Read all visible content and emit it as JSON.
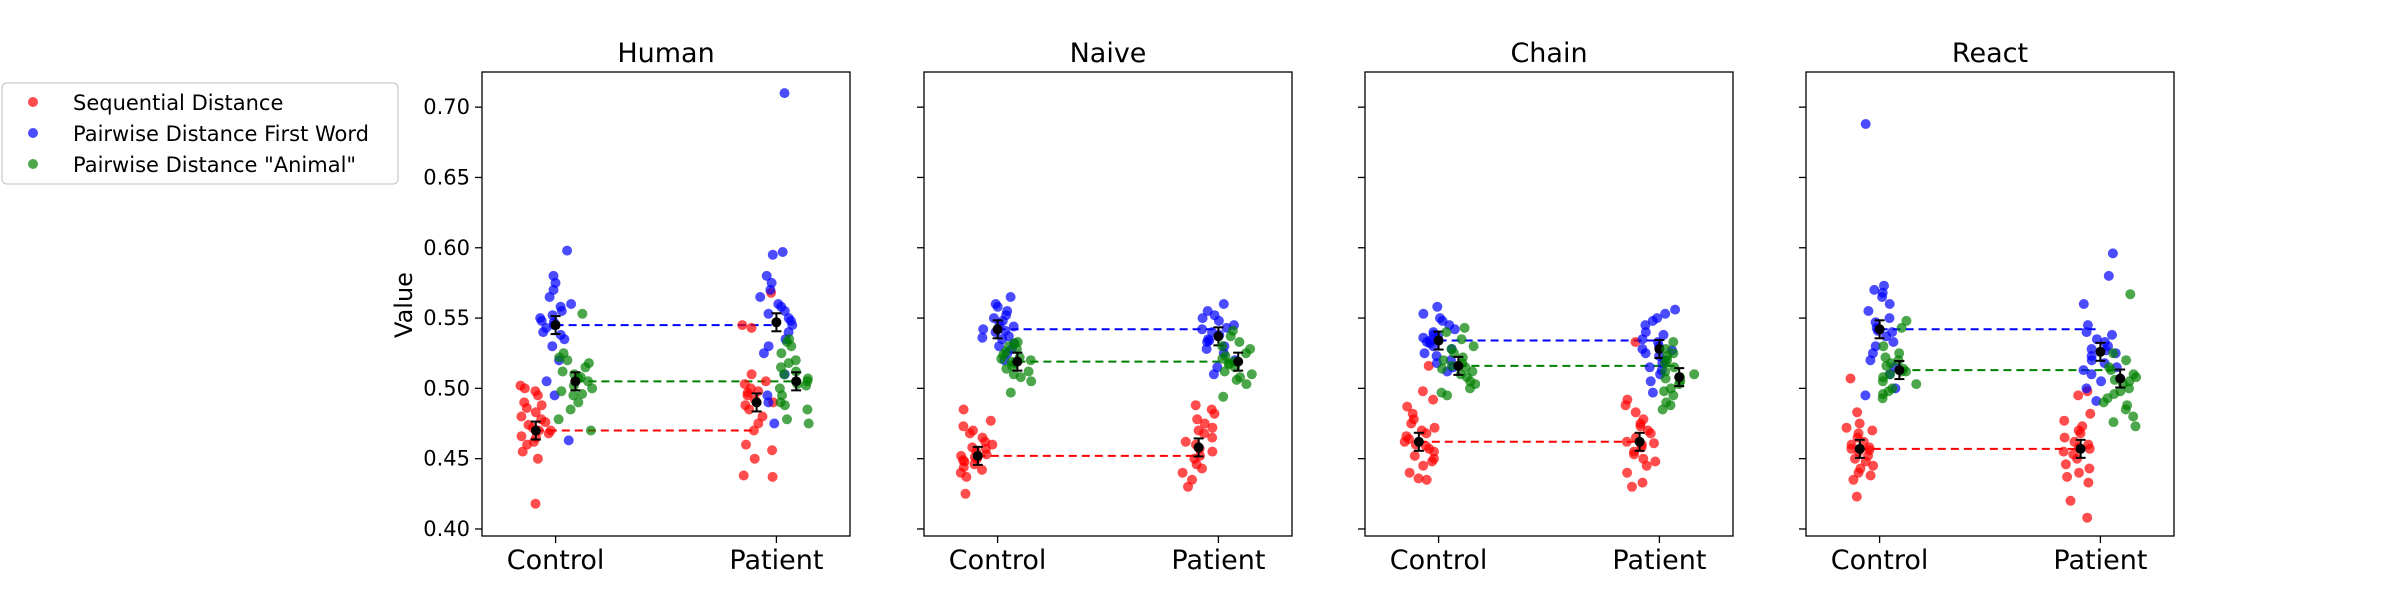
{
  "chart_data": {
    "type": "scatter",
    "ylabel": "Value",
    "categories": [
      "Control",
      "Patient"
    ],
    "ylim": [
      0.395,
      0.725
    ],
    "yticks": [
      0.4,
      0.45,
      0.5,
      0.55,
      0.6,
      0.65,
      0.7
    ],
    "ytick_labels": [
      "0.40",
      "0.45",
      "0.50",
      "0.55",
      "0.60",
      "0.65",
      "0.70"
    ],
    "grid": false,
    "legend_position": "upper-left, outside plots",
    "series": [
      {
        "name": "Sequential Distance",
        "color": "#ff0000",
        "offset": -0.28
      },
      {
        "name": "Pairwise Distance First Word",
        "color": "#0000ff",
        "offset": 0.0
      },
      {
        "name": "Pairwise Distance \"Animal\"",
        "color": "#008000",
        "offset": 0.28
      }
    ],
    "panels": [
      {
        "title": "Human",
        "means": {
          "Sequential Distance": [
            0.47,
            0.49
          ],
          "Pairwise Distance First Word": [
            0.545,
            0.547
          ],
          "Pairwise Distance \"Animal\"": [
            0.505,
            0.505
          ]
        },
        "points": {
          "Sequential Distance": [
            [
              0.418,
              0.45,
              0.455,
              0.46,
              0.462,
              0.465,
              0.466,
              0.468,
              0.47,
              0.472,
              0.474,
              0.476,
              0.478,
              0.48,
              0.483,
              0.486,
              0.488,
              0.49,
              0.495,
              0.498,
              0.5,
              0.502,
              0.47
            ],
            [
              0.437,
              0.438,
              0.45,
              0.456,
              0.46,
              0.47,
              0.475,
              0.48,
              0.485,
              0.488,
              0.49,
              0.492,
              0.495,
              0.498,
              0.5,
              0.503,
              0.505,
              0.51,
              0.543,
              0.545,
              0.568,
              0.497
            ]
          ],
          "Pairwise Distance First Word": [
            [
              0.463,
              0.495,
              0.505,
              0.52,
              0.53,
              0.535,
              0.538,
              0.54,
              0.543,
              0.545,
              0.548,
              0.55,
              0.552,
              0.555,
              0.558,
              0.56,
              0.565,
              0.57,
              0.575,
              0.58,
              0.598,
              0.547
            ],
            [
              0.475,
              0.49,
              0.495,
              0.51,
              0.525,
              0.53,
              0.535,
              0.54,
              0.545,
              0.548,
              0.55,
              0.555,
              0.558,
              0.56,
              0.565,
              0.57,
              0.575,
              0.58,
              0.595,
              0.597,
              0.71,
              0.553
            ]
          ],
          "Pairwise Distance \"Animal\"": [
            [
              0.47,
              0.478,
              0.485,
              0.49,
              0.495,
              0.498,
              0.5,
              0.502,
              0.505,
              0.507,
              0.51,
              0.512,
              0.515,
              0.518,
              0.52,
              0.522,
              0.525,
              0.553,
              0.496,
              0.508
            ],
            [
              0.475,
              0.478,
              0.485,
              0.488,
              0.49,
              0.495,
              0.5,
              0.503,
              0.505,
              0.507,
              0.51,
              0.512,
              0.515,
              0.518,
              0.52,
              0.525,
              0.53,
              0.533,
              0.535,
              0.502
            ]
          ]
        }
      },
      {
        "title": "Naive",
        "means": {
          "Sequential Distance": [
            0.452,
            0.458
          ],
          "Pairwise Distance First Word": [
            0.542,
            0.537
          ],
          "Pairwise Distance \"Animal\"": [
            0.519,
            0.519
          ]
        },
        "points": {
          "Sequential Distance": [
            [
              0.425,
              0.437,
              0.44,
              0.442,
              0.444,
              0.446,
              0.448,
              0.45,
              0.451,
              0.452,
              0.453,
              0.455,
              0.457,
              0.458,
              0.46,
              0.462,
              0.465,
              0.468,
              0.47,
              0.473,
              0.477,
              0.485,
              0.449
            ],
            [
              0.43,
              0.435,
              0.44,
              0.443,
              0.446,
              0.45,
              0.452,
              0.455,
              0.457,
              0.46,
              0.462,
              0.465,
              0.468,
              0.47,
              0.472,
              0.475,
              0.478,
              0.482,
              0.485,
              0.488,
              0.458
            ]
          ],
          "Pairwise Distance First Word": [
            [
              0.52,
              0.525,
              0.528,
              0.53,
              0.532,
              0.535,
              0.537,
              0.54,
              0.542,
              0.544,
              0.546,
              0.548,
              0.55,
              0.552,
              0.555,
              0.558,
              0.56,
              0.565,
              0.541,
              0.536
            ],
            [
              0.51,
              0.515,
              0.52,
              0.525,
              0.528,
              0.53,
              0.533,
              0.535,
              0.538,
              0.54,
              0.542,
              0.545,
              0.548,
              0.55,
              0.552,
              0.555,
              0.56,
              0.534,
              0.543
            ]
          ],
          "Pairwise Distance \"Animal\"": [
            [
              0.497,
              0.505,
              0.508,
              0.51,
              0.512,
              0.514,
              0.516,
              0.518,
              0.52,
              0.522,
              0.524,
              0.526,
              0.528,
              0.53,
              0.532,
              0.533,
              0.519,
              0.521
            ],
            [
              0.494,
              0.503,
              0.506,
              0.508,
              0.51,
              0.512,
              0.515,
              0.517,
              0.519,
              0.521,
              0.523,
              0.525,
              0.528,
              0.53,
              0.533,
              0.537,
              0.541,
              0.518
            ]
          ]
        }
      },
      {
        "title": "Chain",
        "means": {
          "Sequential Distance": [
            0.462,
            0.462
          ],
          "Pairwise Distance First Word": [
            0.534,
            0.528
          ],
          "Pairwise Distance \"Animal\"": [
            0.516,
            0.508
          ]
        },
        "points": {
          "Sequential Distance": [
            [
              0.435,
              0.436,
              0.44,
              0.445,
              0.448,
              0.45,
              0.452,
              0.455,
              0.457,
              0.46,
              0.462,
              0.464,
              0.466,
              0.468,
              0.47,
              0.472,
              0.475,
              0.478,
              0.482,
              0.487,
              0.492,
              0.498,
              0.516,
              0.459
            ],
            [
              0.43,
              0.433,
              0.44,
              0.445,
              0.448,
              0.45,
              0.453,
              0.455,
              0.458,
              0.46,
              0.462,
              0.465,
              0.468,
              0.47,
              0.473,
              0.475,
              0.478,
              0.483,
              0.488,
              0.492,
              0.533,
              0.461
            ]
          ],
          "Pairwise Distance First Word": [
            [
              0.512,
              0.515,
              0.518,
              0.52,
              0.523,
              0.525,
              0.528,
              0.53,
              0.532,
              0.534,
              0.536,
              0.538,
              0.54,
              0.542,
              0.545,
              0.548,
              0.55,
              0.553,
              0.558,
              0.533,
              0.537
            ],
            [
              0.497,
              0.505,
              0.51,
              0.513,
              0.515,
              0.518,
              0.52,
              0.523,
              0.525,
              0.528,
              0.53,
              0.533,
              0.535,
              0.538,
              0.54,
              0.545,
              0.548,
              0.55,
              0.553,
              0.556,
              0.527
            ]
          ],
          "Pairwise Distance \"Animal\"": [
            [
              0.495,
              0.497,
              0.5,
              0.503,
              0.505,
              0.508,
              0.51,
              0.512,
              0.514,
              0.516,
              0.518,
              0.52,
              0.522,
              0.525,
              0.528,
              0.53,
              0.535,
              0.54,
              0.543,
              0.515
            ],
            [
              0.485,
              0.488,
              0.49,
              0.495,
              0.498,
              0.5,
              0.503,
              0.505,
              0.508,
              0.51,
              0.512,
              0.515,
              0.518,
              0.52,
              0.523,
              0.525,
              0.528,
              0.533,
              0.507
            ]
          ]
        }
      },
      {
        "title": "React",
        "means": {
          "Sequential Distance": [
            0.457,
            0.457
          ],
          "Pairwise Distance First Word": [
            0.542,
            0.526
          ],
          "Pairwise Distance \"Animal\"": [
            0.513,
            0.507
          ]
        },
        "points": {
          "Sequential Distance": [
            [
              0.423,
              0.435,
              0.438,
              0.44,
              0.443,
              0.445,
              0.448,
              0.45,
              0.452,
              0.455,
              0.457,
              0.458,
              0.46,
              0.462,
              0.465,
              0.468,
              0.47,
              0.472,
              0.475,
              0.483,
              0.507,
              0.456
            ],
            [
              0.408,
              0.42,
              0.433,
              0.437,
              0.44,
              0.443,
              0.446,
              0.45,
              0.453,
              0.455,
              0.458,
              0.46,
              0.462,
              0.465,
              0.468,
              0.47,
              0.473,
              0.477,
              0.482,
              0.495,
              0.498,
              0.457
            ]
          ],
          "Pairwise Distance First Word": [
            [
              0.495,
              0.5,
              0.51,
              0.515,
              0.52,
              0.525,
              0.53,
              0.533,
              0.537,
              0.54,
              0.543,
              0.547,
              0.55,
              0.555,
              0.56,
              0.565,
              0.568,
              0.57,
              0.573,
              0.688,
              0.541
            ],
            [
              0.491,
              0.5,
              0.505,
              0.51,
              0.513,
              0.515,
              0.518,
              0.52,
              0.523,
              0.525,
              0.528,
              0.53,
              0.533,
              0.535,
              0.538,
              0.54,
              0.545,
              0.56,
              0.58,
              0.596,
              0.527
            ]
          ],
          "Pairwise Distance \"Animal\"": [
            [
              0.493,
              0.496,
              0.498,
              0.5,
              0.503,
              0.505,
              0.508,
              0.51,
              0.512,
              0.514,
              0.516,
              0.518,
              0.52,
              0.522,
              0.525,
              0.53,
              0.543,
              0.548,
              0.512
            ],
            [
              0.473,
              0.476,
              0.48,
              0.485,
              0.488,
              0.49,
              0.493,
              0.496,
              0.498,
              0.5,
              0.503,
              0.505,
              0.508,
              0.51,
              0.513,
              0.515,
              0.52,
              0.525,
              0.567,
              0.506
            ]
          ]
        }
      }
    ]
  }
}
